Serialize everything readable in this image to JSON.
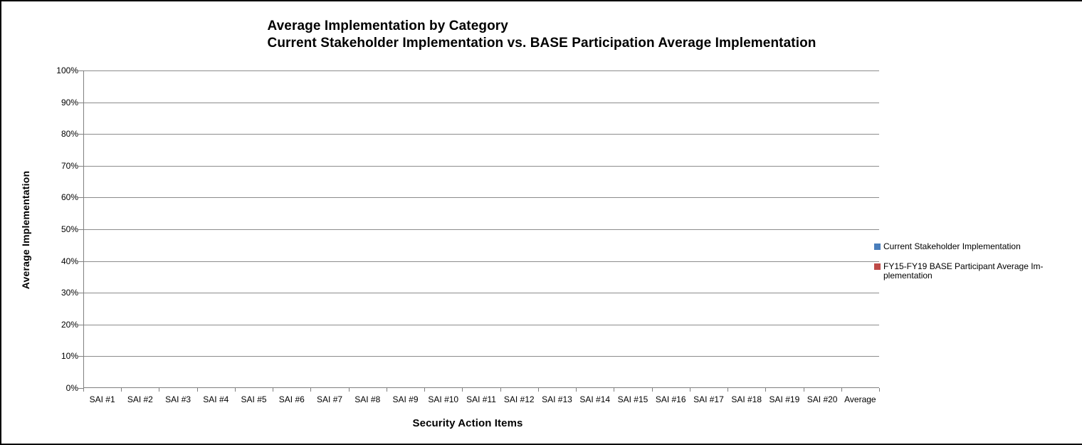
{
  "window": {
    "background": "#ffffff",
    "frame_border_color": "#000000"
  },
  "title": {
    "line1": "Average Implementation by Category",
    "line2": "Current Stakeholder Implementation vs. BASE Participation Average Implementation"
  },
  "axes": {
    "y_title": "Average Implementation",
    "x_title": "Security Action Items"
  },
  "legend": {
    "position": "right",
    "entries": [
      {
        "label": "Current Stakeholder Implementation",
        "color": "#4A7EBB"
      },
      {
        "label": "FY15-FY19 BASE Participant Average Im-\nplementation",
        "color": "#BE4B48"
      }
    ]
  },
  "colors": {
    "axis_line": "#808080",
    "gridline": "#8C8C8C",
    "text": "#000000",
    "series1": "#4A7EBB",
    "series2": "#BE4B48"
  },
  "chart_data": {
    "type": "bar",
    "title": "Average Implementation by Category\nCurrent Stakeholder Implementation vs. BASE Participation Average Implementation",
    "xlabel": "Security Action Items",
    "ylabel": "Average Implementation",
    "categories": [
      "SAI #1",
      "SAI #2",
      "SAI #3",
      "SAI #4",
      "SAI #5",
      "SAI #6",
      "SAI #7",
      "SAI #8",
      "SAI #9",
      "SAI #10",
      "SAI #11",
      "SAI #12",
      "SAI #13",
      "SAI #14",
      "SAI #15",
      "SAI #16",
      "SAI #17",
      "SAI #18",
      "SAI #19",
      "SAI #20",
      "Average"
    ],
    "series": [
      {
        "name": "Current Stakeholder Implementation",
        "color": "#4A7EBB",
        "values": [
          0,
          0,
          0,
          0,
          0,
          0,
          0,
          0,
          0,
          0,
          0,
          0,
          0,
          0,
          0,
          0,
          0,
          0,
          0,
          0,
          0
        ]
      },
      {
        "name": "FY15-FY19 BASE Participant Average Implementation",
        "color": "#BE4B48",
        "values": [
          0,
          0,
          0,
          0,
          0,
          0,
          0,
          0,
          0,
          0,
          0,
          0,
          0,
          0,
          0,
          0,
          0,
          0,
          0,
          0,
          0
        ]
      }
    ],
    "ylim": [
      0,
      100
    ],
    "y_ticks": [
      "0%",
      "10%",
      "20%",
      "30%",
      "40%",
      "50%",
      "60%",
      "70%",
      "80%",
      "90%",
      "100%"
    ],
    "grid": true,
    "legend_position": "right"
  }
}
